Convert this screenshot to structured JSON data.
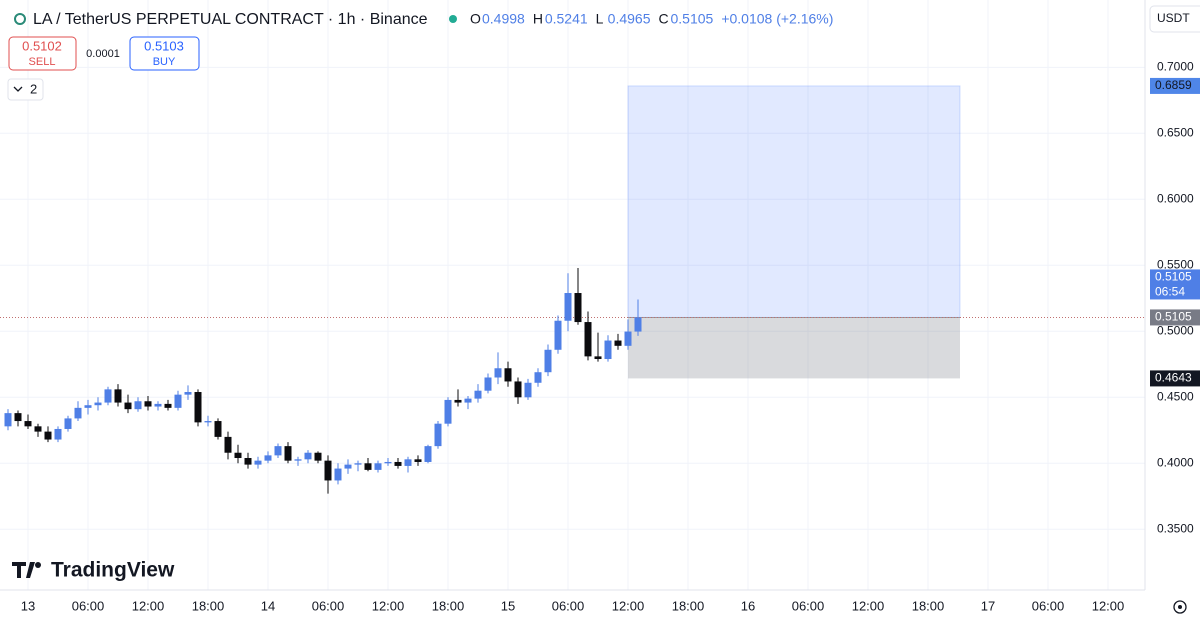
{
  "chart_data": {
    "type": "candlestick",
    "title": "LA / TetherUS PERPETUAL CONTRACT · 1h · Binance",
    "change": "+0.0108 (+2.16%)",
    "ohlc_letters": [
      "O",
      "H",
      "L",
      "C"
    ],
    "sell_price": "0.5102",
    "sell_label": "SELL",
    "spread": "0.0001",
    "buy_price": "0.5103",
    "buy_label": "BUY",
    "indicators_count": "2",
    "currency": "USDT",
    "brand": "TradingView",
    "countdown": "06:54",
    "up_color": "#4f7fe6",
    "down_color": "#0b0b0e",
    "x": [
      -2,
      -1,
      0,
      1,
      2,
      3,
      4,
      5,
      6,
      7,
      8,
      9,
      10,
      11,
      12,
      13,
      14,
      15,
      16,
      17,
      18,
      19,
      20,
      21,
      22,
      23,
      24,
      25,
      26,
      27,
      28,
      29,
      30,
      31,
      32,
      33,
      34,
      35,
      36,
      37,
      38,
      39,
      40,
      41,
      42,
      43,
      44,
      45,
      46,
      47,
      48,
      49,
      50,
      51,
      52,
      53,
      54,
      55,
      56,
      57,
      58,
      59,
      60,
      61
    ],
    "open": [
      0.428,
      0.438,
      0.432,
      0.428,
      0.424,
      0.418,
      0.426,
      0.434,
      0.442,
      0.444,
      0.446,
      0.456,
      0.446,
      0.441,
      0.447,
      0.443,
      0.445,
      0.442,
      0.452,
      0.454,
      0.431,
      0.432,
      0.42,
      0.408,
      0.404,
      0.399,
      0.402,
      0.406,
      0.413,
      0.402,
      0.403,
      0.408,
      0.402,
      0.387,
      0.396,
      0.399,
      0.4,
      0.395,
      0.4,
      0.401,
      0.398,
      0.403,
      0.401,
      0.413,
      0.43,
      0.448,
      0.446,
      0.449,
      0.455,
      0.465,
      0.472,
      0.462,
      0.45,
      0.461,
      0.469,
      0.486,
      0.508,
      0.529,
      0.507,
      0.481,
      0.479,
      0.493,
      0.489,
      0.4998
    ],
    "high": [
      0.441,
      0.44,
      0.437,
      0.43,
      0.428,
      0.428,
      0.436,
      0.447,
      0.448,
      0.45,
      0.458,
      0.46,
      0.452,
      0.45,
      0.451,
      0.447,
      0.448,
      0.455,
      0.459,
      0.456,
      0.436,
      0.434,
      0.424,
      0.414,
      0.408,
      0.405,
      0.409,
      0.415,
      0.416,
      0.405,
      0.41,
      0.409,
      0.406,
      0.4,
      0.403,
      0.402,
      0.404,
      0.402,
      0.404,
      0.404,
      0.405,
      0.406,
      0.414,
      0.432,
      0.45,
      0.456,
      0.451,
      0.46,
      0.468,
      0.484,
      0.477,
      0.465,
      0.464,
      0.472,
      0.49,
      0.512,
      0.544,
      0.548,
      0.515,
      0.499,
      0.497,
      0.498,
      0.509,
      0.5241
    ],
    "low": [
      0.425,
      0.428,
      0.426,
      0.42,
      0.416,
      0.416,
      0.424,
      0.432,
      0.437,
      0.44,
      0.444,
      0.443,
      0.438,
      0.439,
      0.44,
      0.44,
      0.44,
      0.44,
      0.448,
      0.428,
      0.428,
      0.418,
      0.403,
      0.4,
      0.396,
      0.396,
      0.4,
      0.404,
      0.4,
      0.398,
      0.4,
      0.4,
      0.377,
      0.384,
      0.392,
      0.394,
      0.394,
      0.393,
      0.398,
      0.396,
      0.393,
      0.398,
      0.4,
      0.411,
      0.428,
      0.443,
      0.441,
      0.446,
      0.453,
      0.46,
      0.458,
      0.445,
      0.448,
      0.458,
      0.466,
      0.483,
      0.5,
      0.505,
      0.478,
      0.477,
      0.477,
      0.486,
      0.486,
      0.4965
    ],
    "close": [
      0.438,
      0.432,
      0.428,
      0.424,
      0.418,
      0.426,
      0.434,
      0.442,
      0.444,
      0.446,
      0.456,
      0.446,
      0.441,
      0.447,
      0.443,
      0.445,
      0.442,
      0.452,
      0.454,
      0.431,
      0.432,
      0.42,
      0.408,
      0.404,
      0.399,
      0.402,
      0.406,
      0.413,
      0.402,
      0.403,
      0.408,
      0.402,
      0.387,
      0.396,
      0.399,
      0.4,
      0.395,
      0.4,
      0.401,
      0.398,
      0.403,
      0.401,
      0.413,
      0.43,
      0.448,
      0.446,
      0.449,
      0.455,
      0.465,
      0.472,
      0.462,
      0.45,
      0.461,
      0.469,
      0.486,
      0.508,
      0.529,
      0.507,
      0.481,
      0.479,
      0.493,
      0.489,
      0.4998,
      0.5105
    ],
    "position": {
      "start": 60,
      "end": 93.2,
      "target": 0.6859,
      "entry": 0.5105,
      "stop": 0.4643,
      "target_label": "0.6859",
      "entry_label": "0.5105",
      "stop_label": "0.4643",
      "price_label": "0.5105"
    },
    "xlim": [
      -2.8,
      111.7
    ],
    "xticks": [
      {
        "value": 0,
        "label": "13"
      },
      {
        "value": 6,
        "label": "06:00"
      },
      {
        "value": 12,
        "label": "12:00"
      },
      {
        "value": 18,
        "label": "18:00"
      },
      {
        "value": 24,
        "label": "14"
      },
      {
        "value": 30,
        "label": "06:00"
      },
      {
        "value": 36,
        "label": "12:00"
      },
      {
        "value": 42,
        "label": "18:00"
      },
      {
        "value": 48,
        "label": "15"
      },
      {
        "value": 54,
        "label": "06:00"
      },
      {
        "value": 60,
        "label": "12:00"
      },
      {
        "value": 66,
        "label": "18:00"
      },
      {
        "value": 72,
        "label": "16"
      },
      {
        "value": 78,
        "label": "06:00"
      },
      {
        "value": 84,
        "label": "12:00"
      },
      {
        "value": 90,
        "label": "18:00"
      },
      {
        "value": 96,
        "label": "17"
      },
      {
        "value": 102,
        "label": "06:00"
      },
      {
        "value": 108,
        "label": "12:00"
      }
    ],
    "ylim": [
      0.304,
      0.751
    ],
    "yticks": [
      {
        "value": 0.35,
        "label": "0.3500"
      },
      {
        "value": 0.4,
        "label": "0.4000"
      },
      {
        "value": 0.45,
        "label": "0.4500"
      },
      {
        "value": 0.5,
        "label": "0.5000"
      },
      {
        "value": 0.55,
        "label": "0.5500"
      },
      {
        "value": 0.6,
        "label": "0.6000"
      },
      {
        "value": 0.65,
        "label": "0.6500"
      },
      {
        "value": 0.7,
        "label": "0.7000"
      }
    ],
    "grid": true
  }
}
